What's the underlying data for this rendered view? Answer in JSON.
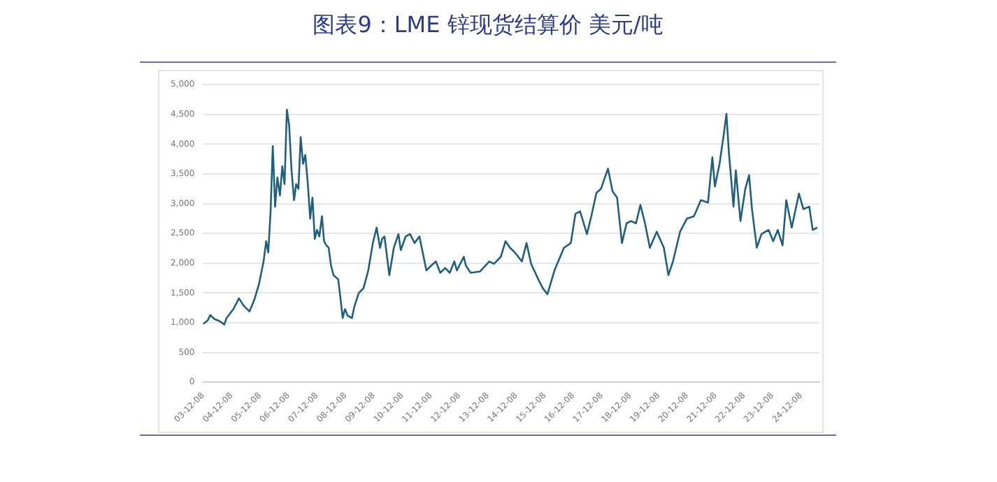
{
  "chart_data": {
    "type": "line",
    "title": "图表9：LME 锌现货结算价 美元/吨",
    "x": [
      "2003-12-08",
      "2004-02-07",
      "2004-03-09",
      "2004-05-07",
      "2004-07-05",
      "2004-09-06",
      "2004-10-05",
      "2005-01-01",
      "2005-03-13",
      "2005-05-11",
      "2005-07-26",
      "2005-09-27",
      "2005-11-25",
      "2006-01-23",
      "2006-02-25",
      "2006-03-24",
      "2006-04-23",
      "2006-05-21",
      "2006-06-20",
      "2006-07-19",
      "2006-08-21",
      "2006-09-20",
      "2006-10-19",
      "2006-11-18",
      "2006-12-17",
      "2007-01-15",
      "2007-02-18",
      "2007-03-17",
      "2007-04-15",
      "2007-05-14",
      "2007-06-13",
      "2007-07-12",
      "2007-08-14",
      "2007-09-13",
      "2007-10-12",
      "2007-11-11",
      "2007-12-09",
      "2008-01-08",
      "2008-02-11",
      "2008-03-09",
      "2008-04-08",
      "2008-05-07",
      "2008-06-06",
      "2008-07-08",
      "2008-09-06",
      "2008-10-05",
      "2008-11-03",
      "2008-12-02",
      "2009-01-05",
      "2009-03-02",
      "2009-04-01",
      "2009-05-28",
      "2009-07-28",
      "2009-09-27",
      "2009-11-25",
      "2010-01-12",
      "2010-02-25",
      "2010-03-24",
      "2010-04-23",
      "2010-06-24",
      "2010-08-21",
      "2010-10-19",
      "2010-11-18",
      "2011-01-19",
      "2011-03-17",
      "2011-05-14",
      "2011-07-15",
      "2011-08-14",
      "2011-10-12",
      "2011-12-13",
      "2012-02-11",
      "2012-04-08",
      "2012-06-09",
      "2012-08-07",
      "2012-10-05",
      "2012-11-07",
      "2013-02-03",
      "2013-03-02",
      "2013-05-03",
      "2013-08-28",
      "2013-12-27",
      "2014-02-25",
      "2014-05-25",
      "2014-07-23",
      "2014-09-20",
      "2014-11-21",
      "2015-02-18",
      "2015-04-19",
      "2015-06-17",
      "2015-09-17",
      "2015-11-14",
      "2016-01-12",
      "2016-04-12",
      "2016-08-11",
      "2016-11-07",
      "2017-01-05",
      "2017-03-06",
      "2017-06-02",
      "2017-07-28",
      "2017-10-01",
      "2017-11-29",
      "2018-02-27",
      "2018-04-26",
      "2018-06-24",
      "2018-08-25",
      "2018-10-23",
      "2018-12-20",
      "2019-02-21",
      "2019-04-19",
      "2019-06-17",
      "2019-08-18",
      "2019-11-14",
      "2020-02-14",
      "2020-04-12",
      "2020-06-09",
      "2020-09-09",
      "2020-12-06",
      "2021-03-06",
      "2021-06-02",
      "2021-09-02",
      "2021-10-28",
      "2021-11-29",
      "2022-01-28",
      "2022-03-27",
      "2022-04-26",
      "2022-05-28",
      "2022-07-26",
      "2022-08-25",
      "2022-10-23",
      "2022-12-24",
      "2023-02-11",
      "2023-03-20",
      "2023-05-21",
      "2023-07-19",
      "2023-10-19",
      "2023-12-17",
      "2024-02-14",
      "2024-04-15",
      "2024-06-02",
      "2024-08-11",
      "2024-11-11",
      "2025-01-08",
      "2025-03-24",
      "2025-05-07",
      "2025-07-05"
    ],
    "series": [
      {
        "color": "#1f5f7f",
        "values": [
          980,
          1040,
          1130,
          1060,
          1030,
          970,
          1080,
          1230,
          1410,
          1290,
          1190,
          1390,
          1650,
          2030,
          2370,
          2180,
          2870,
          3970,
          2950,
          3440,
          3140,
          3630,
          3330,
          4580,
          4320,
          3590,
          3060,
          3330,
          3250,
          4120,
          3670,
          3820,
          3330,
          2750,
          3100,
          2410,
          2560,
          2450,
          2790,
          2370,
          2300,
          2260,
          1960,
          1800,
          1730,
          1420,
          1080,
          1230,
          1120,
          1080,
          1270,
          1500,
          1580,
          1880,
          2340,
          2600,
          2260,
          2410,
          2450,
          1800,
          2260,
          2490,
          2220,
          2450,
          2490,
          2340,
          2450,
          2260,
          1880,
          1960,
          2030,
          1840,
          1920,
          1840,
          2030,
          1880,
          2110,
          1960,
          1840,
          1860,
          2030,
          1990,
          2110,
          2370,
          2260,
          2180,
          2030,
          2340,
          1990,
          1730,
          1580,
          1480,
          1880,
          2260,
          2340,
          2830,
          2870,
          2490,
          2790,
          3180,
          3250,
          3590,
          3210,
          3100,
          2340,
          2670,
          2710,
          2670,
          2980,
          2670,
          2260,
          2530,
          2260,
          1800,
          2030,
          2530,
          2750,
          2790,
          3060,
          3020,
          3780,
          3290,
          3670,
          4200,
          4510,
          3860,
          2950,
          3560,
          2710,
          3250,
          3480,
          2910,
          2260,
          2490,
          2560,
          2370,
          2560,
          2300,
          3060,
          2600,
          3170,
          2910,
          2950,
          2560,
          2600
        ]
      }
    ],
    "xlim": [
      "2003-12-08",
      "2025-08-01"
    ],
    "xticks": [
      {
        "value": "2003-12-08",
        "label": "03-12-08"
      },
      {
        "value": "2004-12-08",
        "label": "04-12-08"
      },
      {
        "value": "2005-12-08",
        "label": "05-12-08"
      },
      {
        "value": "2006-12-08",
        "label": "06-12-08"
      },
      {
        "value": "2007-12-08",
        "label": "07-12-08"
      },
      {
        "value": "2008-12-08",
        "label": "08-12-08"
      },
      {
        "value": "2009-12-08",
        "label": "09-12-08"
      },
      {
        "value": "2010-12-08",
        "label": "10-12-08"
      },
      {
        "value": "2011-12-08",
        "label": "11-12-08"
      },
      {
        "value": "2012-12-08",
        "label": "12-12-08"
      },
      {
        "value": "2013-12-08",
        "label": "13-12-08"
      },
      {
        "value": "2014-12-08",
        "label": "14-12-08"
      },
      {
        "value": "2015-12-08",
        "label": "15-12-08"
      },
      {
        "value": "2016-12-08",
        "label": "16-12-08"
      },
      {
        "value": "2017-12-08",
        "label": "17-12-08"
      },
      {
        "value": "2018-12-08",
        "label": "18-12-08"
      },
      {
        "value": "2019-12-08",
        "label": "19-12-08"
      },
      {
        "value": "2020-12-08",
        "label": "20-12-08"
      },
      {
        "value": "2021-12-08",
        "label": "21-12-08"
      },
      {
        "value": "2022-12-08",
        "label": "22-12-08"
      },
      {
        "value": "2023-12-08",
        "label": "23-12-08"
      },
      {
        "value": "2024-12-08",
        "label": "24-12-08"
      }
    ],
    "ylim": [
      0,
      5000
    ],
    "yticks": [
      {
        "value": 0,
        "label": "0"
      },
      {
        "value": 500,
        "label": "500"
      },
      {
        "value": 1000,
        "label": "1,000"
      },
      {
        "value": 1500,
        "label": "1,500"
      },
      {
        "value": 2000,
        "label": "2,000"
      },
      {
        "value": 2500,
        "label": "2,500"
      },
      {
        "value": 3000,
        "label": "3,000"
      },
      {
        "value": 3500,
        "label": "3,500"
      },
      {
        "value": 4000,
        "label": "4,000"
      },
      {
        "value": 4500,
        "label": "4,500"
      },
      {
        "value": 5000,
        "label": "5,000"
      }
    ],
    "grid": "y",
    "legend": false,
    "marker": "none",
    "line_style": "solid"
  }
}
